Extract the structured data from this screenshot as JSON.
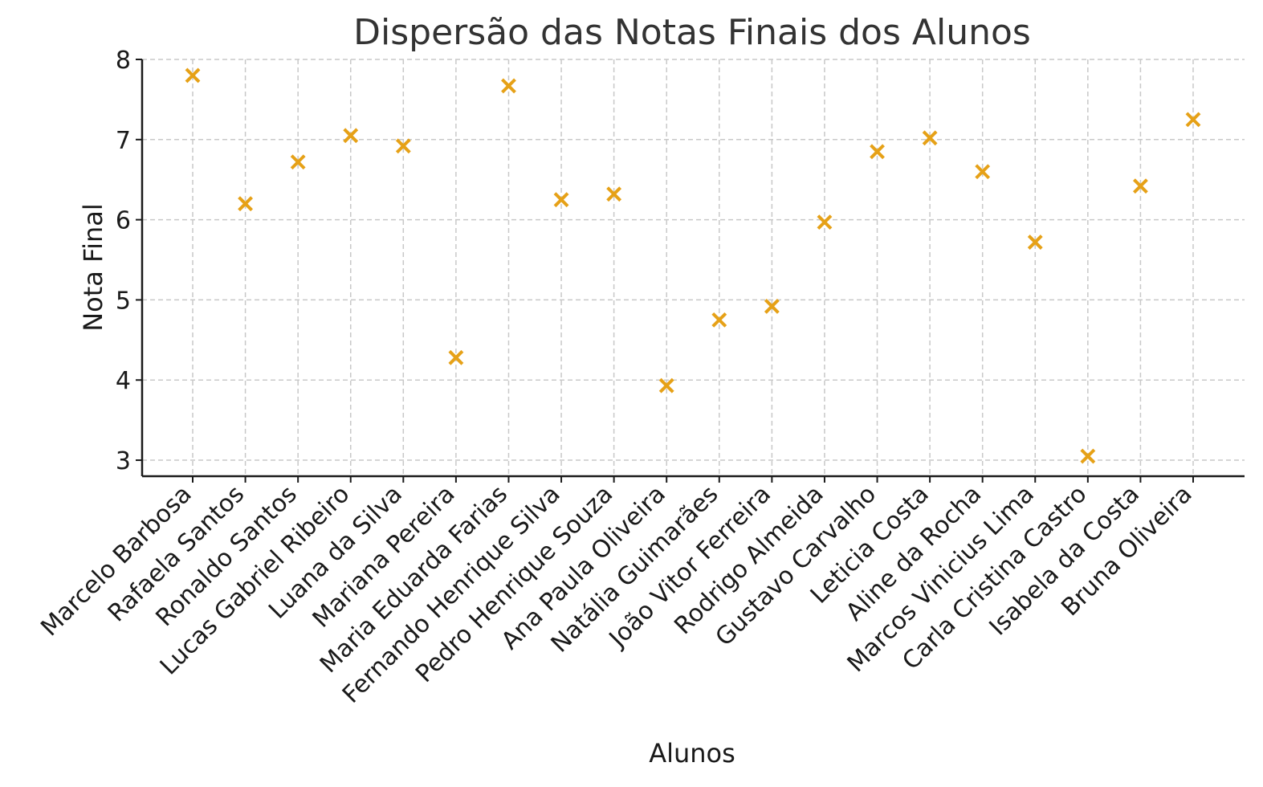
{
  "chart_data": {
    "type": "scatter",
    "title": "Dispersão das Notas Finais dos Alunos",
    "xlabel": "Alunos",
    "ylabel": "Nota Final",
    "categories": [
      "Marcelo Barbosa",
      "Rafaela Santos",
      "Ronaldo Santos",
      "Lucas Gabriel Ribeiro",
      "Luana da Silva",
      "Mariana Pereira",
      "Maria Eduarda Farias",
      "Fernando Henrique Silva",
      "Pedro Henrique Souza",
      "Ana Paula Oliveira",
      "Natália Guimarães",
      "João Vitor Ferreira",
      "Rodrigo Almeida",
      "Gustavo Carvalho",
      "Leticia Costa",
      "Aline da Rocha",
      "Marcos Vinicius Lima",
      "Carla Cristina Castro",
      "Isabela da Costa",
      "Bruna Oliveira"
    ],
    "values": [
      7.8,
      6.2,
      6.72,
      7.05,
      6.92,
      4.28,
      7.67,
      6.25,
      6.32,
      3.93,
      4.75,
      4.92,
      5.97,
      6.85,
      7.02,
      6.6,
      5.72,
      3.05,
      6.42,
      7.25
    ],
    "ylim": [
      2.8,
      8.0
    ],
    "yticks": [
      "3",
      "4",
      "5",
      "6",
      "7",
      "8"
    ],
    "marker": "x",
    "color": "#e6a117",
    "grid": true
  }
}
